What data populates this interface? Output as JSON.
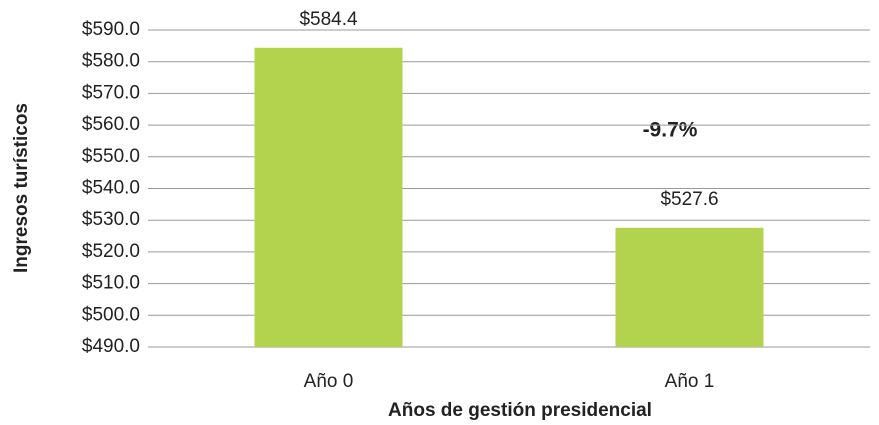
{
  "chart_data": {
    "type": "bar",
    "categories": [
      "Año 0",
      "Año 1"
    ],
    "values": [
      584.4,
      527.6
    ],
    "value_labels": [
      "$584.4",
      "$527.6"
    ],
    "color": "#b3d24d",
    "x_label": "Años de gestión presidencial",
    "y_label": "Ingresos turísticos",
    "annotation": "-9.7%",
    "ylim": [
      490,
      590
    ],
    "yticks": [
      {
        "value": 490,
        "label": "$490.0"
      },
      {
        "value": 500,
        "label": "$500.0"
      },
      {
        "value": 510,
        "label": "$510.0"
      },
      {
        "value": 520,
        "label": "$520.0"
      },
      {
        "value": 530,
        "label": "$530.0"
      },
      {
        "value": 540,
        "label": "$540.0"
      },
      {
        "value": 550,
        "label": "$550.0"
      },
      {
        "value": 560,
        "label": "$560.0"
      },
      {
        "value": 570,
        "label": "$570.0"
      },
      {
        "value": 580,
        "label": "$580.0"
      },
      {
        "value": 590,
        "label": "$590.0"
      }
    ],
    "grid": true
  }
}
